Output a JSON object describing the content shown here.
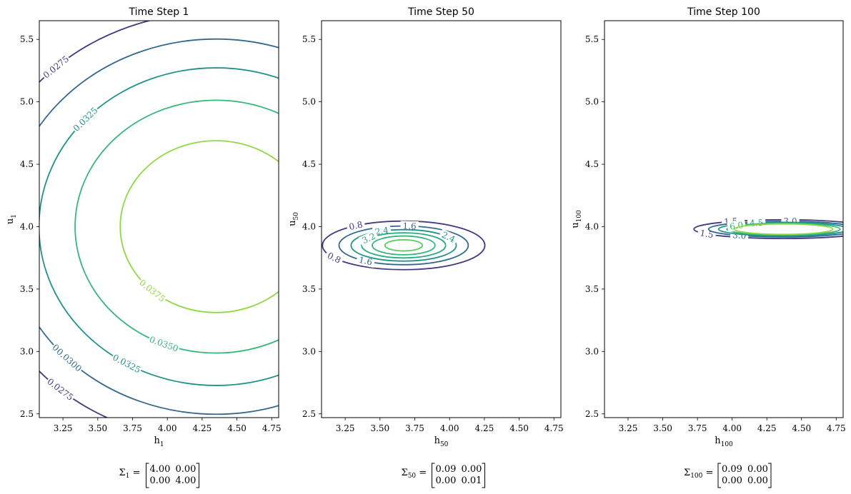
{
  "chart_data": [
    {
      "type": "contour",
      "title": "Time Step 1",
      "xlabel": {
        "base": "h",
        "sub": "1"
      },
      "ylabel": {
        "base": "u",
        "sub": "1"
      },
      "xlim": [
        3.08,
        4.8
      ],
      "ylim": [
        2.47,
        5.65
      ],
      "xticks": [
        "3.25",
        "3.50",
        "3.75",
        "4.00",
        "4.25",
        "4.50",
        "4.75"
      ],
      "yticks": [
        "2.5",
        "3.0",
        "3.5",
        "4.0",
        "4.5",
        "5.0",
        "5.5"
      ],
      "mean": [
        4.35,
        4.0
      ],
      "covariance": [
        [
          4.0,
          0.0
        ],
        [
          0.0,
          4.0
        ]
      ],
      "sigma_axes": [
        2.0,
        2.0
      ],
      "levels": [
        {
          "value": 0.0275,
          "label": "0.0275",
          "color": "#443983"
        },
        {
          "value": 0.03,
          "label": "0.0300",
          "color": "#31688e"
        },
        {
          "value": 0.0325,
          "label": "0.0325",
          "color": "#21918c"
        },
        {
          "value": 0.035,
          "label": "0.0350",
          "color": "#35b779"
        },
        {
          "value": 0.0375,
          "label": "0.0375",
          "color": "#90d743"
        }
      ],
      "covariance_text": {
        "symbol": "Σ",
        "sub": "1",
        "rows": [
          [
            "4.00",
            "0.00"
          ],
          [
            "0.00",
            "4.00"
          ]
        ]
      }
    },
    {
      "type": "contour",
      "title": "Time Step 50",
      "xlabel": {
        "base": "h",
        "sub": "50"
      },
      "ylabel": {
        "base": "u",
        "sub": "50"
      },
      "xlim": [
        3.08,
        4.8
      ],
      "ylim": [
        2.47,
        5.65
      ],
      "xticks": [
        "3.25",
        "3.50",
        "3.75",
        "4.00",
        "4.25",
        "4.50",
        "4.75"
      ],
      "yticks": [
        "2.5",
        "3.0",
        "3.5",
        "4.0",
        "4.5",
        "5.0",
        "5.5"
      ],
      "mean": [
        3.67,
        3.85
      ],
      "covariance": [
        [
          0.09,
          0.0
        ],
        [
          0.0,
          0.01
        ]
      ],
      "sigma_axes": [
        0.3,
        0.1
      ],
      "levels": [
        {
          "value": 0.8,
          "label": "0.8",
          "color": "#443983"
        },
        {
          "value": 1.6,
          "label": "1.6",
          "color": "#31688e"
        },
        {
          "value": 2.4,
          "label": "2.4",
          "color": "#21918c"
        },
        {
          "value": 3.2,
          "label": "3.2",
          "color": "#27ad81"
        },
        {
          "value": 4.0,
          "label": "4.0",
          "color": "#35b779"
        },
        {
          "value": 4.8,
          "label": "4.8",
          "color": "#5ec962"
        },
        {
          "value": 5.6,
          "label": "5.6",
          "color": "#b5de2b"
        }
      ],
      "covariance_text": {
        "symbol": "Σ",
        "sub": "50",
        "rows": [
          [
            "0.09",
            "0.00"
          ],
          [
            "0.00",
            "0.01"
          ]
        ]
      }
    },
    {
      "type": "contour",
      "title": "Time Step 100",
      "xlabel": {
        "base": "h",
        "sub": "100"
      },
      "ylabel": {
        "base": "u",
        "sub": "100"
      },
      "xlim": [
        3.08,
        4.8
      ],
      "ylim": [
        2.47,
        5.65
      ],
      "xticks": [
        "3.25",
        "3.50",
        "3.75",
        "4.00",
        "4.25",
        "4.50",
        "4.75"
      ],
      "yticks": [
        "2.5",
        "3.0",
        "3.5",
        "4.0",
        "4.5",
        "5.0",
        "5.5"
      ],
      "mean": [
        4.37,
        3.98
      ],
      "covariance": [
        [
          0.09,
          0.0
        ],
        [
          0.0,
          0.001
        ]
      ],
      "sigma_axes": [
        0.3,
        0.035
      ],
      "levels": [
        {
          "value": 1.5,
          "label": "1.5",
          "color": "#443983"
        },
        {
          "value": 3.0,
          "label": "3.0",
          "color": "#31688e"
        },
        {
          "value": 4.5,
          "label": "4.5",
          "color": "#21918c"
        },
        {
          "value": 6.0,
          "label": "6.0",
          "color": "#35b779"
        },
        {
          "value": 7.5,
          "label": "7.5",
          "color": "#90d743"
        }
      ],
      "covariance_text": {
        "symbol": "Σ",
        "sub": "100",
        "rows": [
          [
            "0.09",
            "0.00"
          ],
          [
            "0.00",
            "0.00"
          ]
        ]
      }
    }
  ]
}
